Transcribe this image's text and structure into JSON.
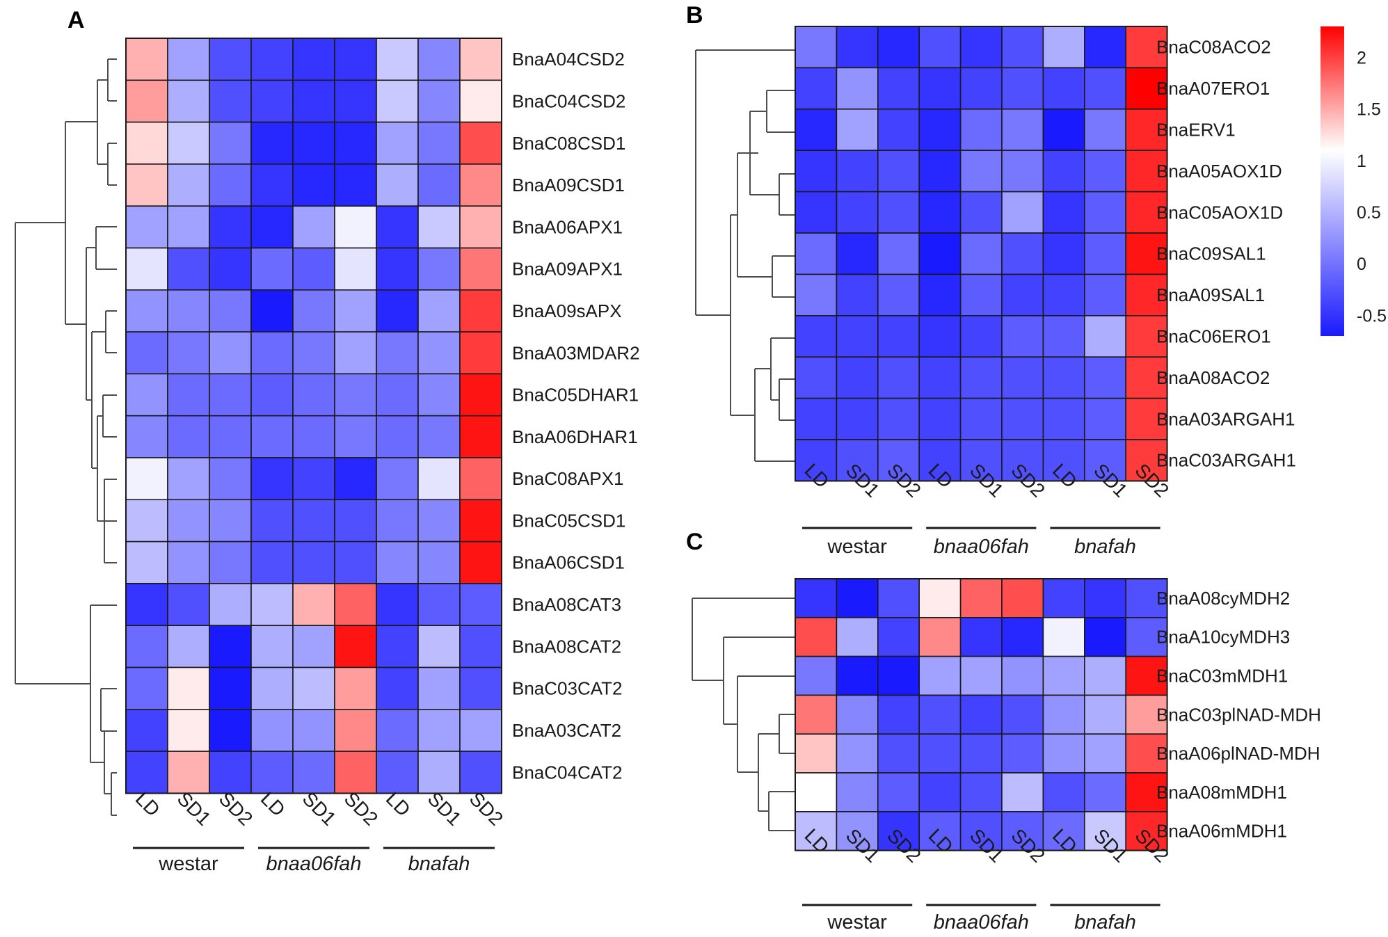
{
  "chart_data": [
    {
      "type": "heatmap",
      "panel": "A",
      "columns": [
        "LD",
        "SD1",
        "SD2",
        "LD",
        "SD1",
        "SD2",
        "LD",
        "SD1",
        "SD2"
      ],
      "groups": [
        {
          "name": "westar",
          "italic": false
        },
        {
          "name": "bnaa06fah",
          "italic": true
        },
        {
          "name": "bnafah",
          "italic": true
        }
      ],
      "rows": [
        "BnaA04CSD2",
        "BnaC04CSD2",
        "BnaC08CSD1",
        "BnaA09CSD1",
        "BnaA06APX1",
        "BnaA09APX1",
        "BnaA09sAPX",
        "BnaA03MDAR2",
        "BnaC05DHAR1",
        "BnaA06DHAR1",
        "BnaC08APX1",
        "BnaC05CSD1",
        "BnaA06CSD1",
        "BnaA08CAT3",
        "BnaA08CAT2",
        "BnaC03CAT2",
        "BnaA03CAT2",
        "BnaC04CAT2"
      ],
      "values": [
        [
          1.4,
          0.3,
          -0.3,
          -0.4,
          -0.5,
          -0.5,
          0.6,
          0.1,
          1.3
        ],
        [
          1.5,
          0.4,
          -0.3,
          -0.4,
          -0.5,
          -0.5,
          0.6,
          0.1,
          1.1
        ],
        [
          1.2,
          0.6,
          0.0,
          -0.6,
          -0.6,
          -0.6,
          0.3,
          0.0,
          1.9
        ],
        [
          1.3,
          0.4,
          -0.1,
          -0.5,
          -0.6,
          -0.6,
          0.4,
          -0.1,
          1.6
        ],
        [
          0.3,
          0.3,
          -0.5,
          -0.6,
          0.3,
          0.9,
          -0.5,
          0.6,
          1.4
        ],
        [
          0.8,
          -0.3,
          -0.5,
          -0.1,
          -0.2,
          0.8,
          -0.5,
          0.0,
          1.7
        ],
        [
          0.2,
          0.1,
          0.0,
          -0.7,
          0.0,
          0.3,
          -0.6,
          0.3,
          2.0
        ],
        [
          -0.1,
          0.0,
          0.2,
          -0.1,
          0.0,
          0.3,
          0.0,
          0.2,
          2.0
        ],
        [
          0.2,
          -0.1,
          -0.1,
          -0.2,
          -0.1,
          0.0,
          -0.1,
          0.1,
          2.2
        ],
        [
          0.1,
          -0.1,
          -0.1,
          -0.1,
          -0.1,
          0.0,
          -0.1,
          0.0,
          2.2
        ],
        [
          0.9,
          0.3,
          0.0,
          -0.5,
          -0.4,
          -0.6,
          0.0,
          0.8,
          1.8
        ],
        [
          0.5,
          0.2,
          0.1,
          -0.3,
          -0.3,
          -0.3,
          0.0,
          0.1,
          2.2
        ],
        [
          0.5,
          0.2,
          0.0,
          -0.3,
          -0.3,
          -0.3,
          0.1,
          0.1,
          2.2
        ],
        [
          -0.5,
          -0.3,
          0.4,
          0.5,
          1.4,
          1.8,
          -0.5,
          -0.2,
          -0.2
        ],
        [
          -0.1,
          0.4,
          -0.7,
          0.4,
          0.3,
          2.2,
          -0.4,
          0.5,
          -0.3
        ],
        [
          -0.1,
          1.1,
          -0.8,
          0.4,
          0.5,
          1.5,
          -0.4,
          0.3,
          -0.3
        ],
        [
          -0.4,
          1.1,
          -0.8,
          0.2,
          0.2,
          1.6,
          -0.1,
          0.3,
          0.3
        ],
        [
          -0.4,
          1.4,
          -0.4,
          -0.2,
          -0.1,
          1.8,
          -0.2,
          0.4,
          -0.3
        ]
      ]
    },
    {
      "type": "heatmap",
      "panel": "B",
      "columns": [
        "LD",
        "SD1",
        "SD2",
        "LD",
        "SD1",
        "SD2",
        "LD",
        "SD1",
        "SD2"
      ],
      "groups": [
        {
          "name": "westar",
          "italic": false
        },
        {
          "name": "bnaa06fah",
          "italic": true
        },
        {
          "name": "bnafah",
          "italic": true
        }
      ],
      "rows": [
        "BnaC08ACO2",
        "BnaA07ERO1",
        "BnaERV1",
        "BnaA05AOX1D",
        "BnaC05AOX1D",
        "BnaC09SAL1",
        "BnaA09SAL1",
        "BnaC06ERO1",
        "BnaA08ACO2",
        "BnaA03ARGAH1",
        "BnaC03ARGAH1"
      ],
      "values": [
        [
          0.0,
          -0.5,
          -0.6,
          -0.3,
          -0.5,
          -0.3,
          0.4,
          -0.6,
          2.0
        ],
        [
          -0.4,
          0.2,
          -0.4,
          -0.5,
          -0.4,
          -0.3,
          -0.4,
          -0.3,
          2.3
        ],
        [
          -0.6,
          0.3,
          -0.4,
          -0.6,
          -0.1,
          0.0,
          -0.7,
          0.0,
          2.1
        ],
        [
          -0.5,
          -0.4,
          -0.3,
          -0.6,
          0.0,
          0.0,
          -0.4,
          -0.2,
          2.1
        ],
        [
          -0.5,
          -0.4,
          -0.3,
          -0.6,
          -0.3,
          0.3,
          -0.5,
          -0.2,
          2.1
        ],
        [
          -0.1,
          -0.6,
          -0.1,
          -0.7,
          -0.1,
          -0.3,
          -0.5,
          -0.2,
          2.2
        ],
        [
          0.0,
          -0.4,
          -0.2,
          -0.6,
          -0.2,
          -0.4,
          -0.4,
          -0.2,
          2.1
        ],
        [
          -0.4,
          -0.4,
          -0.4,
          -0.5,
          -0.4,
          -0.2,
          -0.2,
          0.4,
          2.0
        ],
        [
          -0.3,
          -0.4,
          -0.3,
          -0.4,
          -0.3,
          -0.3,
          -0.3,
          -0.2,
          2.0
        ],
        [
          -0.4,
          -0.4,
          -0.3,
          -0.4,
          -0.3,
          -0.3,
          -0.3,
          -0.2,
          2.0
        ],
        [
          -0.4,
          -0.3,
          -0.2,
          -0.4,
          -0.3,
          -0.3,
          -0.3,
          -0.2,
          2.0
        ]
      ],
      "legend": {
        "min": -0.7,
        "max": 2.3,
        "ticks": [
          "2",
          "1.5",
          "1",
          "0.5",
          "0",
          "-0.5"
        ],
        "tick_values": [
          2,
          1.5,
          1,
          0.5,
          0,
          -0.5
        ]
      }
    },
    {
      "type": "heatmap",
      "panel": "C",
      "columns": [
        "LD",
        "SD1",
        "SD2",
        "LD",
        "SD1",
        "SD2",
        "LD",
        "SD1",
        "SD2"
      ],
      "groups": [
        {
          "name": "westar",
          "italic": false
        },
        {
          "name": "bnaa06fah",
          "italic": true
        },
        {
          "name": "bnafah",
          "italic": true
        }
      ],
      "rows": [
        "BnaA08cyMDH2",
        "BnaA10cyMDH3",
        "BnaC03mMDH1",
        "BnaC03plNAD-MDH",
        "BnaA06plNAD-MDH",
        "BnaA08mMDH1",
        "BnaA06mMDH1"
      ],
      "values": [
        [
          -0.5,
          -0.7,
          -0.3,
          1.1,
          1.8,
          1.9,
          -0.4,
          -0.5,
          -0.3
        ],
        [
          1.9,
          0.4,
          -0.4,
          1.6,
          -0.5,
          -0.6,
          0.9,
          -0.7,
          -0.2
        ],
        [
          0.0,
          -0.7,
          -0.7,
          0.3,
          0.3,
          0.2,
          0.3,
          0.4,
          2.2
        ],
        [
          1.7,
          0.1,
          -0.4,
          -0.3,
          -0.4,
          -0.3,
          0.2,
          0.4,
          1.5
        ],
        [
          1.3,
          0.2,
          -0.3,
          -0.3,
          -0.3,
          -0.2,
          0.2,
          0.3,
          1.9
        ],
        [
          1.0,
          0.1,
          -0.2,
          -0.4,
          -0.3,
          0.5,
          -0.3,
          -0.1,
          2.2
        ],
        [
          0.5,
          0.2,
          -0.5,
          -0.2,
          -0.3,
          -0.2,
          -0.1,
          0.6,
          2.1
        ]
      ]
    }
  ]
}
